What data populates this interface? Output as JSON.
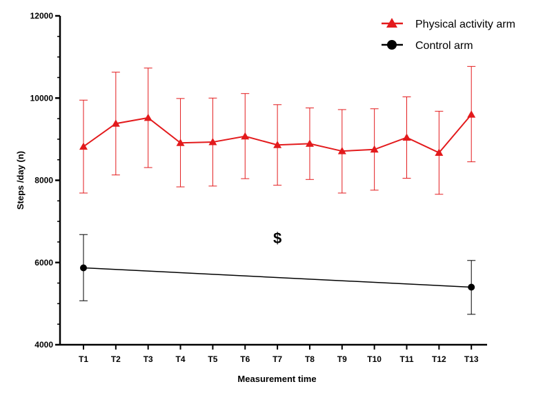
{
  "chart_data": {
    "type": "line",
    "title": "",
    "xlabel": "Measurement time",
    "ylabel": "Steps /day (n)",
    "categories": [
      "T1",
      "T2",
      "T3",
      "T4",
      "T5",
      "T6",
      "T7",
      "T8",
      "T9",
      "T10",
      "T11",
      "T12",
      "T13"
    ],
    "ylim": [
      4000,
      12000
    ],
    "yticks": [
      4000,
      6000,
      8000,
      10000,
      12000
    ],
    "grid": false,
    "legend_position": "top-right",
    "annotations": [
      {
        "text": "$",
        "category": "T7",
        "y": 6600
      }
    ],
    "series": [
      {
        "name": "Physical activity arm",
        "color": "#e31a1c",
        "marker": "triangle",
        "x": [
          "T1",
          "T2",
          "T3",
          "T4",
          "T5",
          "T6",
          "T7",
          "T8",
          "T9",
          "T10",
          "T11",
          "T12",
          "T13"
        ],
        "values": [
          8820,
          9380,
          9520,
          8910,
          8930,
          9070,
          8860,
          8890,
          8710,
          8750,
          9040,
          8670,
          9600
        ],
        "error_upper": [
          9950,
          10630,
          10730,
          9990,
          10000,
          10110,
          9840,
          9760,
          9720,
          9740,
          10030,
          9680,
          10770
        ],
        "error_lower": [
          7690,
          8130,
          8310,
          7840,
          7860,
          8040,
          7880,
          8020,
          7690,
          7760,
          8050,
          7660,
          8450
        ]
      },
      {
        "name": "Control arm",
        "color": "#000000",
        "marker": "circle",
        "x": [
          "T1",
          "T13"
        ],
        "values": [
          5870,
          5400
        ],
        "error_upper": [
          6680,
          6050
        ],
        "error_lower": [
          5070,
          4740
        ]
      }
    ]
  }
}
